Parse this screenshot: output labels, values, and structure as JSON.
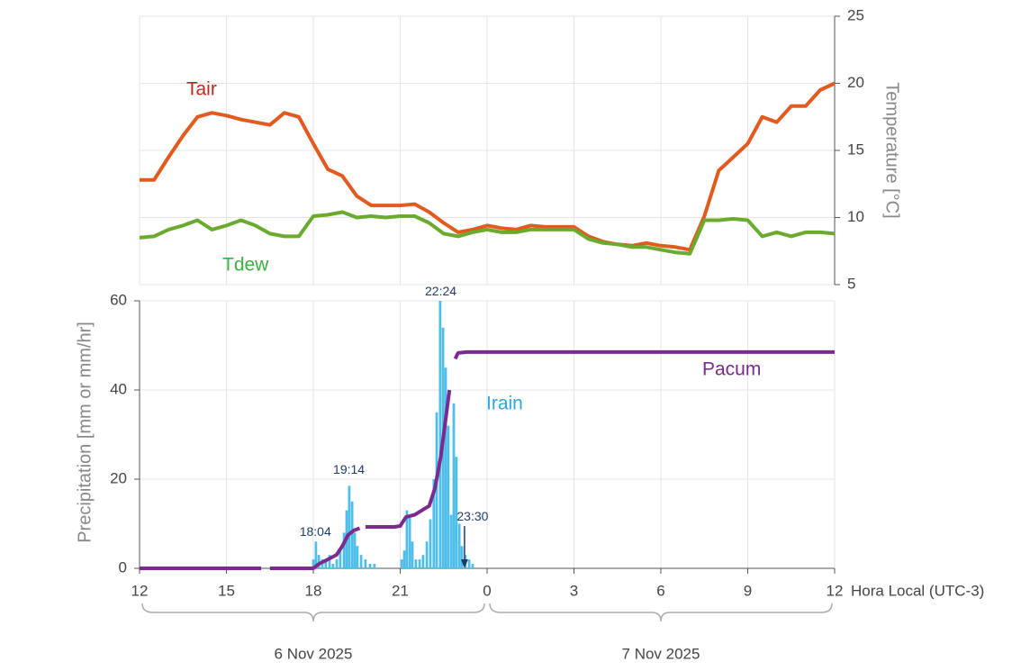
{
  "chart_data": [
    {
      "type": "line",
      "y_label": "Temperature [°C]",
      "xlim": [
        0,
        24
      ],
      "ylim": [
        5,
        25
      ],
      "yticks": [
        5,
        10,
        15,
        20,
        25
      ],
      "grid": true,
      "series": [
        {
          "name": "Tair",
          "color": "#e35a1e",
          "label_color": "#c0281a",
          "x": [
            0,
            0.5,
            1,
            1.5,
            2,
            2.5,
            3,
            3.5,
            4,
            4.5,
            5,
            5.5,
            6,
            6.5,
            7,
            7.5,
            8,
            8.5,
            9,
            9.5,
            10,
            10.5,
            11,
            11.5,
            12,
            12.5,
            13,
            13.5,
            14,
            14.5,
            15,
            15.5,
            16,
            16.5,
            17,
            17.5,
            18,
            18.5,
            19,
            19.5,
            20,
            20.5,
            21,
            21.5,
            22,
            22.5,
            23,
            23.5,
            24
          ],
          "values": [
            12.8,
            12.8,
            14.5,
            16.1,
            17.5,
            17.8,
            17.6,
            17.3,
            17.1,
            16.9,
            17.8,
            17.5,
            15.5,
            13.6,
            13.1,
            11.6,
            10.9,
            10.9,
            10.9,
            11.0,
            10.4,
            9.6,
            8.9,
            9.1,
            9.4,
            9.2,
            9.1,
            9.4,
            9.3,
            9.3,
            9.3,
            8.6,
            8.2,
            8.0,
            7.9,
            8.1,
            7.9,
            7.8,
            7.6,
            10.1,
            13.5,
            14.5,
            15.5,
            17.5,
            17.1,
            18.3,
            18.3,
            19.5,
            20.0
          ]
        },
        {
          "name": "Tdew",
          "color": "#6aaa2e",
          "label_color": "#3cb043",
          "x": [
            0,
            0.5,
            1,
            1.5,
            2,
            2.5,
            3,
            3.5,
            4,
            4.5,
            5,
            5.5,
            6,
            6.5,
            7,
            7.5,
            8,
            8.5,
            9,
            9.5,
            10,
            10.5,
            11,
            11.5,
            12,
            12.5,
            13,
            13.5,
            14,
            14.5,
            15,
            15.5,
            16,
            16.5,
            17,
            17.5,
            18,
            18.5,
            19,
            19.5,
            20,
            20.5,
            21,
            21.5,
            22,
            22.5,
            23,
            23.5,
            24
          ],
          "values": [
            8.5,
            8.6,
            9.1,
            9.4,
            9.8,
            9.1,
            9.4,
            9.8,
            9.4,
            8.8,
            8.6,
            8.6,
            10.1,
            10.2,
            10.4,
            10.0,
            10.1,
            10.0,
            10.1,
            10.1,
            9.6,
            8.8,
            8.6,
            8.9,
            9.1,
            8.9,
            8.9,
            9.1,
            9.1,
            9.1,
            9.1,
            8.4,
            8.1,
            8.0,
            7.8,
            7.8,
            7.6,
            7.4,
            7.3,
            9.8,
            9.8,
            9.9,
            9.8,
            8.6,
            8.9,
            8.6,
            8.9,
            8.9,
            8.8
          ]
        }
      ]
    },
    {
      "type": "combo",
      "y_label": "Precipitation [mm or mm/hr]",
      "x_label": "Hora Local (UTC-3)",
      "xlim": [
        0,
        24
      ],
      "xticks": [
        {
          "value": 0,
          "label": "12"
        },
        {
          "value": 3,
          "label": "15"
        },
        {
          "value": 6,
          "label": "18"
        },
        {
          "value": 9,
          "label": "21"
        },
        {
          "value": 12,
          "label": "0"
        },
        {
          "value": 15,
          "label": "3"
        },
        {
          "value": 18,
          "label": "6"
        },
        {
          "value": 21,
          "label": "9"
        },
        {
          "value": 24,
          "label": "12"
        }
      ],
      "ylim": [
        0,
        60
      ],
      "yticks": [
        0,
        20,
        40,
        60
      ],
      "grid": true,
      "dates": [
        "6 Nov 2025",
        "7 Nov 2025"
      ],
      "series": [
        {
          "name": "Irain",
          "type": "bar",
          "color": "#4dbde9",
          "label_color": "#2aa8e0",
          "x": [
            6.0,
            6.09,
            6.19,
            6.31,
            6.43,
            6.56,
            6.68,
            6.81,
            6.93,
            7.06,
            7.15,
            7.24,
            7.34,
            7.43,
            7.52,
            7.65,
            7.8,
            7.96,
            8.11,
            9.05,
            9.14,
            9.23,
            9.33,
            9.42,
            9.54,
            9.67,
            9.79,
            9.92,
            10.04,
            10.16,
            10.26,
            10.38,
            10.48,
            10.57,
            10.66,
            10.76,
            10.85,
            10.94,
            11.04,
            11.13,
            11.25,
            11.38,
            11.5
          ],
          "values": [
            2,
            6,
            3,
            2,
            2,
            3,
            1,
            2,
            4,
            8,
            13,
            18.5,
            15,
            8,
            5,
            3,
            2,
            1,
            1,
            2,
            4,
            13,
            12,
            6,
            2,
            2,
            3,
            6,
            11,
            20,
            35,
            60,
            54,
            45,
            32,
            12,
            37,
            25,
            10,
            5,
            3,
            2,
            1
          ]
        },
        {
          "name": "Pacum",
          "type": "line",
          "color": "#7b2a8e",
          "label_color": "#7b2a8e",
          "x": [
            0,
            4.2,
            4.35,
            4.5,
            6,
            6.2,
            6.5,
            6.8,
            7,
            7.2,
            7.4,
            7.6,
            7.7,
            7.8,
            8.8,
            9,
            9.2,
            9.5,
            10,
            10.2,
            10.4,
            10.6,
            10.7,
            10.8,
            10.9,
            11,
            11.3,
            24
          ],
          "values": [
            0,
            0,
            null,
            0,
            0,
            1,
            2,
            3,
            5,
            7.5,
            8.5,
            9,
            null,
            9.3,
            9.3,
            9.5,
            11.5,
            12,
            14,
            18,
            25,
            35,
            40,
            null,
            47,
            48.3,
            48.5,
            48.5
          ]
        }
      ],
      "annotations": [
        {
          "text": "18:04",
          "x": 6.07,
          "y": 8
        },
        {
          "text": "19:14",
          "x": 7.23,
          "y": 22
        },
        {
          "text": "22:24",
          "x": 10.4,
          "y": 62
        },
        {
          "text": "23:30",
          "x": 11.5,
          "y": 11.5,
          "arrow": true
        }
      ]
    }
  ]
}
